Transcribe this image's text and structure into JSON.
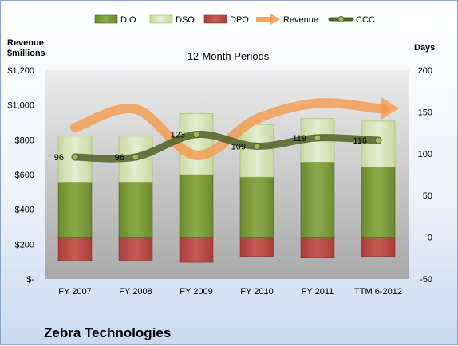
{
  "chart_data": {
    "type": "bar",
    "title": "12-Month Periods",
    "company": "Zebra Technologies",
    "ylabel_left": "Revenue\n$millions",
    "ylabel_right": "Days",
    "categories": [
      "FY 2007",
      "FY 2008",
      "FY 2009",
      "FY 2010",
      "FY 2011",
      "TTM 6-2012"
    ],
    "ylim_left": [
      0,
      1200
    ],
    "ylim_right": [
      -50,
      200
    ],
    "left_ticks": [
      0,
      200,
      400,
      600,
      800,
      1000,
      1200
    ],
    "left_tick_labels": [
      "$-",
      "$200",
      "$400",
      "$600",
      "$800",
      "$1,000",
      "$1,200"
    ],
    "right_ticks": [
      -50,
      0,
      50,
      100,
      150,
      200
    ],
    "right_tick_labels": [
      "-50",
      "0",
      "50",
      "100",
      "150",
      "200"
    ],
    "series": [
      {
        "name": "DIO",
        "axis": "right",
        "kind": "stacked-bar",
        "color": "#76933c",
        "values": [
          66,
          66,
          75,
          72,
          90,
          84
        ]
      },
      {
        "name": "DSO",
        "axis": "right",
        "kind": "stacked-bar",
        "color": "#d7e4bd",
        "values": [
          55,
          55,
          73,
          63,
          52,
          55
        ]
      },
      {
        "name": "DPO",
        "axis": "right",
        "kind": "stacked-bar-negative",
        "color": "#c0504d",
        "values": [
          -28,
          -28,
          -30,
          -23,
          -24,
          -23
        ]
      },
      {
        "name": "Revenue",
        "axis": "left",
        "kind": "line",
        "color": "#f79646",
        "values": [
          870,
          976,
          711,
          920,
          1010,
          980
        ]
      },
      {
        "name": "CCC",
        "axis": "right",
        "kind": "line-markers",
        "color": "#4f6228",
        "values": [
          96,
          96,
          123,
          109,
          119,
          116
        ]
      }
    ],
    "data_labels": [
      "96",
      "96",
      "123",
      "109",
      "119",
      "116"
    ],
    "legend_position": "top",
    "grid": false
  }
}
